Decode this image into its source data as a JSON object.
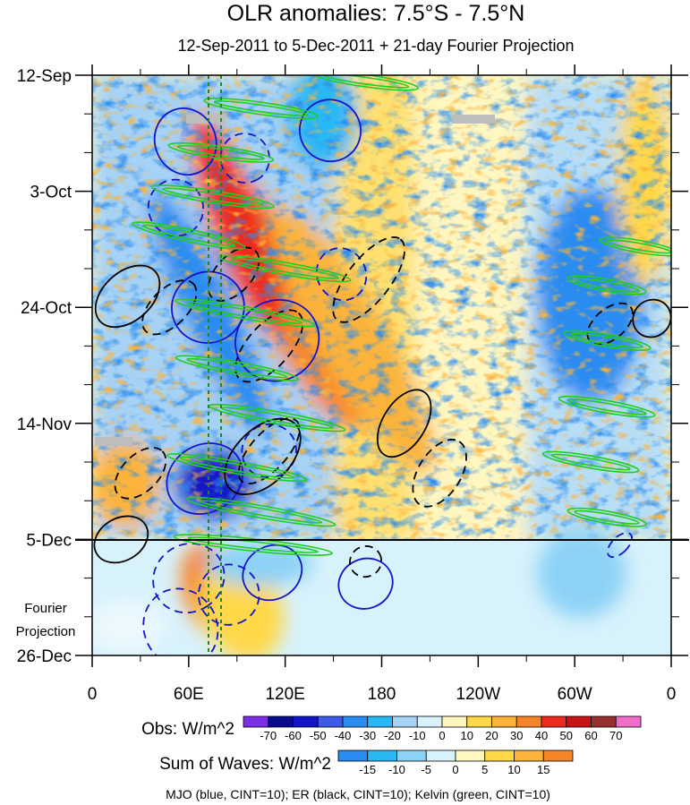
{
  "chart_data": {
    "type": "heatmap",
    "title": "OLR anomalies: 7.5°S - 7.5°N",
    "subtitle": "12-Sep-2011 to 5-Dec-2011 + 21-day Fourier Projection",
    "x_ticks": [
      "0",
      "60E",
      "120E",
      "180",
      "120W",
      "60W",
      "0"
    ],
    "x_tick_values": [
      0,
      60,
      120,
      180,
      240,
      300,
      360
    ],
    "y_ticks": [
      "12-Sep",
      "3-Oct",
      "24-Oct",
      "14-Nov",
      "5-Dec",
      "26-Dec"
    ],
    "y_tick_days": [
      0,
      21,
      42,
      63,
      84,
      105
    ],
    "xlim": [
      0,
      360
    ],
    "ylim_days": [
      0,
      105
    ],
    "observation_end_day": 84,
    "projection_label": [
      "Fourier",
      "Projection"
    ],
    "reference_longitudes": [
      72,
      80
    ],
    "obs_colorbar": {
      "label": "Obs: W/m^2",
      "levels": [
        "-70",
        "-60",
        "-50",
        "-40",
        "-30",
        "-20",
        "-10",
        "0",
        "10",
        "20",
        "30",
        "40",
        "50",
        "60",
        "70"
      ],
      "colors": [
        "#7a2ee6",
        "#0a0a8c",
        "#1414c8",
        "#3c5ae6",
        "#2a8cf0",
        "#2ab8f5",
        "#a6d2f5",
        "#d8f2fc",
        "#fff6c0",
        "#ffd84a",
        "#fbb33a",
        "#f6852a",
        "#ee2a1e",
        "#c81414",
        "#963030",
        "#f06ec8"
      ]
    },
    "waves_colorbar": {
      "label": "Sum of Waves: W/m^2",
      "levels": [
        "-15",
        "-10",
        "-5",
        "0",
        "5",
        "10",
        "15"
      ],
      "colors": [
        "#2a8cf0",
        "#2ab8f5",
        "#8cd2f5",
        "#d8f2fc",
        "#fff6c0",
        "#ffd84a",
        "#fbb33a",
        "#f6852a"
      ]
    },
    "footer": "MJO (blue, CINT=10); ER (black, CINT=10); Kelvin (green, CINT=10)",
    "contours": [
      {
        "wave": "MJO",
        "color": "#1414c8",
        "dashed": false,
        "lon": 58,
        "day": 12,
        "rx": 38,
        "ry": 10,
        "angle": 68
      },
      {
        "wave": "MJO",
        "color": "#1414c8",
        "dashed": false,
        "lon": 148,
        "day": 10,
        "rx": 35,
        "ry": 10,
        "angle": 62
      },
      {
        "wave": "MJO",
        "color": "#1414c8",
        "dashed": true,
        "lon": 52,
        "day": 24,
        "rx": 32,
        "ry": 9,
        "angle": 68
      },
      {
        "wave": "MJO",
        "color": "#1414c8",
        "dashed": true,
        "lon": 95,
        "day": 15,
        "rx": 28,
        "ry": 8,
        "angle": 58
      },
      {
        "wave": "MJO",
        "color": "#1414c8",
        "dashed": false,
        "lon": 72,
        "day": 42,
        "rx": 40,
        "ry": 12,
        "angle": 62
      },
      {
        "wave": "MJO",
        "color": "#1414c8",
        "dashed": false,
        "lon": 115,
        "day": 48,
        "rx": 45,
        "ry": 14,
        "angle": 58
      },
      {
        "wave": "MJO",
        "color": "#1414c8",
        "dashed": true,
        "lon": 155,
        "day": 36,
        "rx": 30,
        "ry": 8,
        "angle": 62
      },
      {
        "wave": "MJO",
        "color": "#1414c8",
        "dashed": false,
        "lon": 70,
        "day": 73,
        "rx": 38,
        "ry": 13,
        "angle": 58
      },
      {
        "wave": "MJO",
        "color": "#1414c8",
        "dashed": true,
        "lon": 110,
        "day": 68,
        "rx": 30,
        "ry": 9,
        "angle": 62
      },
      {
        "wave": "MJO",
        "color": "#1414c8",
        "dashed": true,
        "lon": 60,
        "day": 91,
        "rx": 38,
        "ry": 12,
        "angle": 55
      },
      {
        "wave": "MJO",
        "color": "#1414c8",
        "dashed": true,
        "lon": 85,
        "day": 94,
        "rx": 34,
        "ry": 10,
        "angle": 58
      },
      {
        "wave": "MJO",
        "color": "#1414c8",
        "dashed": false,
        "lon": 112,
        "day": 90,
        "rx": 30,
        "ry": 10,
        "angle": 60
      },
      {
        "wave": "MJO",
        "color": "#1414c8",
        "dashed": false,
        "lon": 170,
        "day": 92,
        "rx": 28,
        "ry": 9,
        "angle": 68
      },
      {
        "wave": "MJO",
        "color": "#1414c8",
        "dashed": true,
        "lon": 328,
        "day": 85,
        "rx": 9,
        "ry": 5,
        "angle": 45
      },
      {
        "wave": "MJO",
        "color": "#1414c8",
        "dashed": true,
        "lon": 55,
        "day": 100,
        "rx": 45,
        "ry": 12,
        "angle": 62
      },
      {
        "wave": "ER",
        "color": "#000000",
        "dashed": false,
        "lon": 22,
        "day": 40,
        "rx": 42,
        "ry": 8,
        "angle": -42
      },
      {
        "wave": "ER",
        "color": "#000000",
        "dashed": true,
        "lon": 48,
        "day": 42,
        "rx": 38,
        "ry": 6,
        "angle": -45
      },
      {
        "wave": "ER",
        "color": "#000000",
        "dashed": true,
        "lon": 88,
        "day": 36,
        "rx": 36,
        "ry": 6,
        "angle": -48
      },
      {
        "wave": "ER",
        "color": "#000000",
        "dashed": true,
        "lon": 110,
        "day": 49,
        "rx": 50,
        "ry": 7,
        "angle": -48
      },
      {
        "wave": "ER",
        "color": "#000000",
        "dashed": true,
        "lon": 172,
        "day": 37,
        "rx": 58,
        "ry": 7,
        "angle": -52
      },
      {
        "wave": "ER",
        "color": "#000000",
        "dashed": false,
        "lon": 106,
        "day": 69,
        "rx": 52,
        "ry": 9,
        "angle": -45
      },
      {
        "wave": "ER",
        "color": "#000000",
        "dashed": true,
        "lon": 110,
        "day": 68,
        "rx": 46,
        "ry": 6,
        "angle": -48
      },
      {
        "wave": "ER",
        "color": "#000000",
        "dashed": false,
        "lon": 194,
        "day": 63,
        "rx": 42,
        "ry": 7,
        "angle": -58
      },
      {
        "wave": "ER",
        "color": "#000000",
        "dashed": true,
        "lon": 216,
        "day": 72,
        "rx": 42,
        "ry": 7,
        "angle": -58
      },
      {
        "wave": "ER",
        "color": "#000000",
        "dashed": true,
        "lon": 30,
        "day": 72,
        "rx": 35,
        "ry": 6,
        "angle": -45
      },
      {
        "wave": "ER",
        "color": "#000000",
        "dashed": false,
        "lon": 18,
        "day": 84,
        "rx": 32,
        "ry": 7,
        "angle": -30
      },
      {
        "wave": "ER",
        "color": "#000000",
        "dashed": true,
        "lon": 170,
        "day": 88,
        "rx": 18,
        "ry": 5,
        "angle": -30
      },
      {
        "wave": "ER",
        "color": "#000000",
        "dashed": true,
        "lon": 322,
        "day": 45,
        "rx": 30,
        "ry": 5,
        "angle": -40
      },
      {
        "wave": "ER",
        "color": "#000000",
        "dashed": false,
        "lon": 348,
        "day": 44,
        "rx": 22,
        "ry": 6,
        "angle": -40
      },
      {
        "wave": "Kelvin",
        "color": "#22cc22",
        "dashed": false,
        "lon": 170,
        "day": 1,
        "rx": 60,
        "ry": 2,
        "angle": 8
      },
      {
        "wave": "Kelvin",
        "color": "#22cc22",
        "dashed": false,
        "lon": 105,
        "day": 6,
        "rx": 65,
        "ry": 2,
        "angle": 8
      },
      {
        "wave": "Kelvin",
        "color": "#22cc22",
        "dashed": false,
        "lon": 80,
        "day": 14,
        "rx": 60,
        "ry": 2,
        "angle": 8
      },
      {
        "wave": "Kelvin",
        "color": "#22cc22",
        "dashed": false,
        "lon": 75,
        "day": 22,
        "rx": 70,
        "ry": 2,
        "angle": 9
      },
      {
        "wave": "Kelvin",
        "color": "#22cc22",
        "dashed": false,
        "lon": 60,
        "day": 29,
        "rx": 65,
        "ry": 2,
        "angle": 12
      },
      {
        "wave": "Kelvin",
        "color": "#22cc22",
        "dashed": false,
        "lon": 120,
        "day": 35,
        "rx": 75,
        "ry": 2,
        "angle": 10
      },
      {
        "wave": "Kelvin",
        "color": "#22cc22",
        "dashed": false,
        "lon": 95,
        "day": 43,
        "rx": 80,
        "ry": 2,
        "angle": 10
      },
      {
        "wave": "Kelvin",
        "color": "#22cc22",
        "dashed": false,
        "lon": 90,
        "day": 53,
        "rx": 70,
        "ry": 2,
        "angle": 10
      },
      {
        "wave": "Kelvin",
        "color": "#22cc22",
        "dashed": false,
        "lon": 115,
        "day": 62,
        "rx": 78,
        "ry": 2,
        "angle": 10
      },
      {
        "wave": "Kelvin",
        "color": "#22cc22",
        "dashed": false,
        "lon": 90,
        "day": 71,
        "rx": 80,
        "ry": 2,
        "angle": 10
      },
      {
        "wave": "Kelvin",
        "color": "#22cc22",
        "dashed": false,
        "lon": 105,
        "day": 79,
        "rx": 85,
        "ry": 2,
        "angle": 10
      },
      {
        "wave": "Kelvin",
        "color": "#22cc22",
        "dashed": false,
        "lon": 100,
        "day": 85,
        "rx": 90,
        "ry": 2,
        "angle": 6
      },
      {
        "wave": "Kelvin",
        "color": "#22cc22",
        "dashed": false,
        "lon": 340,
        "day": 31,
        "rx": 45,
        "ry": 2,
        "angle": 10
      },
      {
        "wave": "Kelvin",
        "color": "#22cc22",
        "dashed": false,
        "lon": 320,
        "day": 38,
        "rx": 45,
        "ry": 2,
        "angle": 10
      },
      {
        "wave": "Kelvin",
        "color": "#22cc22",
        "dashed": false,
        "lon": 320,
        "day": 48,
        "rx": 50,
        "ry": 2,
        "angle": 10
      },
      {
        "wave": "Kelvin",
        "color": "#22cc22",
        "dashed": false,
        "lon": 320,
        "day": 60,
        "rx": 55,
        "ry": 2,
        "angle": 10
      },
      {
        "wave": "Kelvin",
        "color": "#22cc22",
        "dashed": false,
        "lon": 310,
        "day": 70,
        "rx": 55,
        "ry": 2,
        "angle": 10
      },
      {
        "wave": "Kelvin",
        "color": "#22cc22",
        "dashed": false,
        "lon": 320,
        "day": 80,
        "rx": 45,
        "ry": 2,
        "angle": 10
      }
    ]
  }
}
